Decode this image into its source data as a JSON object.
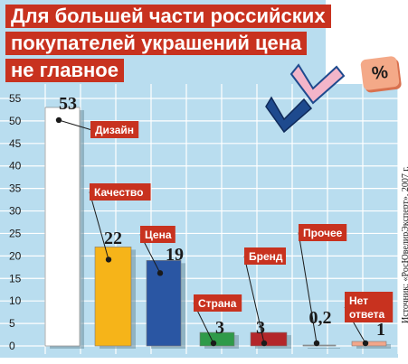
{
  "header": {
    "title_lines": [
      "Для большей части российских",
      "покупателей украшений цена",
      "не главное"
    ],
    "unit_badge": "%",
    "source": "Источник: «РосЮвелирЭксперт», 2007 г."
  },
  "chart_data": {
    "type": "bar",
    "title": "Для большей части российских покупателей украшений цена не главное",
    "xlabel": "",
    "ylabel": "",
    "ylim": [
      0,
      55
    ],
    "y_ticks": [
      0,
      5,
      10,
      15,
      20,
      25,
      30,
      35,
      40,
      45,
      50,
      55
    ],
    "grid": true,
    "categories": [
      "Дизайн",
      "Качество",
      "Цена",
      "Страна",
      "Бренд",
      "Прочее",
      "Нет ответа"
    ],
    "values": [
      53,
      22,
      19,
      3,
      3,
      0.2,
      1
    ],
    "value_labels": [
      "53",
      "22",
      "19",
      "3",
      "3",
      "0,2",
      "1"
    ],
    "category_label_lines": [
      [
        "Дизайн"
      ],
      [
        "Качество"
      ],
      [
        "Цена"
      ],
      [
        "Страна"
      ],
      [
        "Бренд"
      ],
      [
        "Прочее"
      ],
      [
        "Нет",
        "ответа"
      ]
    ],
    "colors": {
      "Дизайн": "#ffffff",
      "Качество": "#f6b419",
      "Цена": "#2a56a3",
      "Страна": "#2f9a49",
      "Бренд": "#b3262a",
      "Прочее": "#a8aaad",
      "Нет ответа": "#f2a68a"
    }
  }
}
